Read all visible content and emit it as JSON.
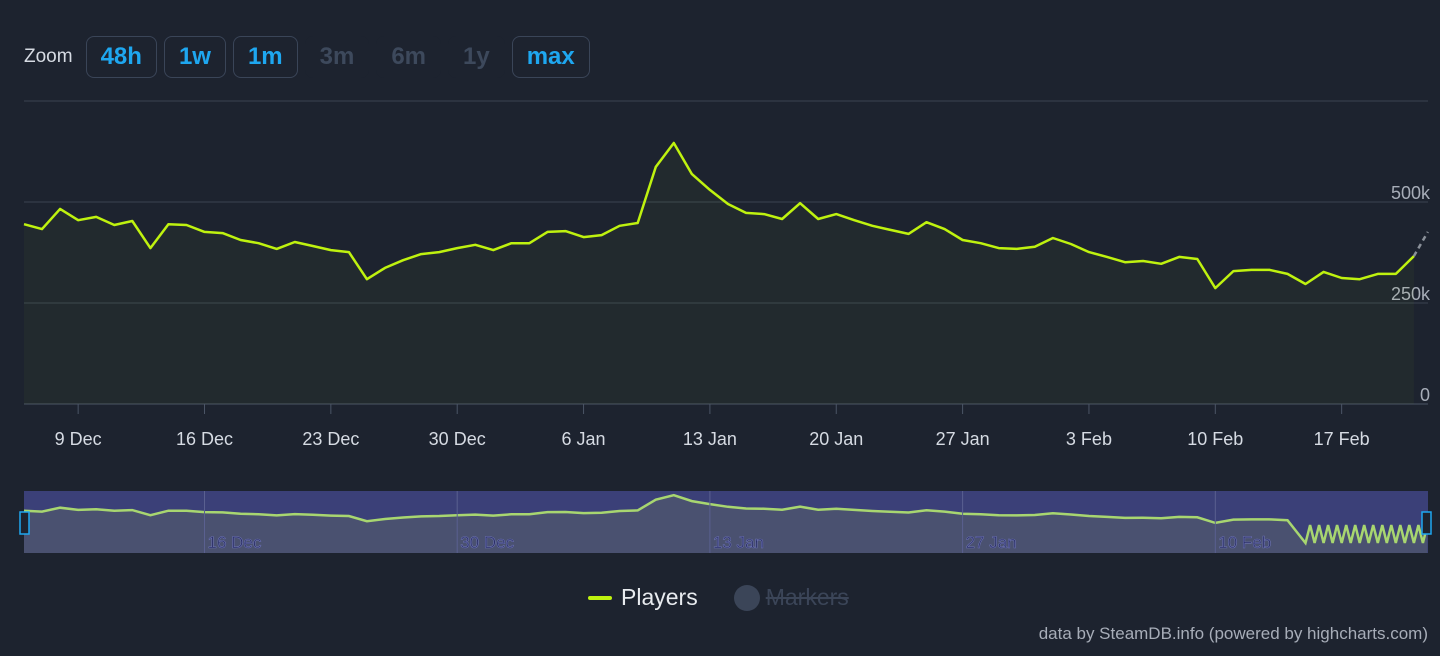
{
  "zoom": {
    "label": "Zoom",
    "buttons": [
      {
        "label": "48h",
        "enabled": true
      },
      {
        "label": "1w",
        "enabled": true
      },
      {
        "label": "1m",
        "enabled": true
      },
      {
        "label": "3m",
        "enabled": false
      },
      {
        "label": "6m",
        "enabled": false
      },
      {
        "label": "1y",
        "enabled": false
      },
      {
        "label": "max",
        "enabled": true
      }
    ]
  },
  "chart_data": {
    "type": "line",
    "y_ticks": [
      "0",
      "250k",
      "500k"
    ],
    "y_tick_values": [
      0,
      250000,
      500000
    ],
    "ylim": [
      0,
      750000
    ],
    "x_ticks": [
      "9 Dec",
      "16 Dec",
      "23 Dec",
      "30 Dec",
      "6 Jan",
      "13 Jan",
      "20 Jan",
      "27 Jan",
      "3 Feb",
      "10 Feb",
      "17 Feb"
    ],
    "navigator_ticks": [
      "16 Dec",
      "30 Dec",
      "13 Jan",
      "27 Jan",
      "10 Feb"
    ],
    "grid": true,
    "series": [
      {
        "name": "Players",
        "color": "#bff20f",
        "x": [
          "6 Dec",
          "7 Dec",
          "8 Dec",
          "9 Dec",
          "10 Dec",
          "11 Dec",
          "12 Dec",
          "13 Dec",
          "14 Dec",
          "15 Dec",
          "16 Dec",
          "17 Dec",
          "18 Dec",
          "19 Dec",
          "20 Dec",
          "21 Dec",
          "22 Dec",
          "23 Dec",
          "24 Dec",
          "25 Dec",
          "26 Dec",
          "27 Dec",
          "28 Dec",
          "29 Dec",
          "30 Dec",
          "31 Dec",
          "1 Jan",
          "2 Jan",
          "3 Jan",
          "4 Jan",
          "5 Jan",
          "6 Jan",
          "7 Jan",
          "8 Jan",
          "9 Jan",
          "10 Jan",
          "11 Jan",
          "12 Jan",
          "13 Jan",
          "14 Jan",
          "15 Jan",
          "16 Jan",
          "17 Jan",
          "18 Jan",
          "19 Jan",
          "20 Jan",
          "21 Jan",
          "22 Jan",
          "23 Jan",
          "24 Jan",
          "25 Jan",
          "26 Jan",
          "27 Jan",
          "28 Jan",
          "29 Jan",
          "30 Jan",
          "31 Jan",
          "1 Feb",
          "2 Feb",
          "3 Feb",
          "4 Feb",
          "5 Feb",
          "6 Feb",
          "7 Feb",
          "8 Feb",
          "9 Feb",
          "10 Feb",
          "11 Feb",
          "12 Feb",
          "13 Feb",
          "14 Feb",
          "15 Feb",
          "16 Feb",
          "17 Feb",
          "18 Feb",
          "19 Feb",
          "20 Feb",
          "21 Feb"
        ],
        "values": [
          445000,
          433000,
          483000,
          455000,
          463000,
          443000,
          453000,
          386000,
          445000,
          443000,
          426000,
          423000,
          406000,
          398000,
          384000,
          401000,
          391000,
          381000,
          376000,
          309000,
          337000,
          356000,
          371000,
          376000,
          386000,
          394000,
          381000,
          398000,
          398000,
          426000,
          428000,
          413000,
          418000,
          441000,
          448000,
          587000,
          646000,
          569000,
          530000,
          495000,
          473000,
          470000,
          458000,
          497000,
          458000,
          470000,
          455000,
          441000,
          431000,
          421000,
          450000,
          433000,
          406000,
          398000,
          386000,
          384000,
          389000,
          411000,
          396000,
          376000,
          364000,
          351000,
          354000,
          347000,
          364000,
          359000,
          287000,
          329000,
          332000,
          332000,
          322000,
          297000,
          327000,
          312000,
          309000,
          322000,
          322000,
          366000
        ],
        "incomplete_point": {
          "x": "22 Feb",
          "value": 426000
        }
      }
    ],
    "legend": {
      "position": "bottom",
      "items": [
        {
          "label": "Players",
          "enabled": true
        },
        {
          "label": "Markers",
          "enabled": false
        }
      ]
    }
  },
  "credits": "data by SteamDB.info (powered by highcharts.com)"
}
